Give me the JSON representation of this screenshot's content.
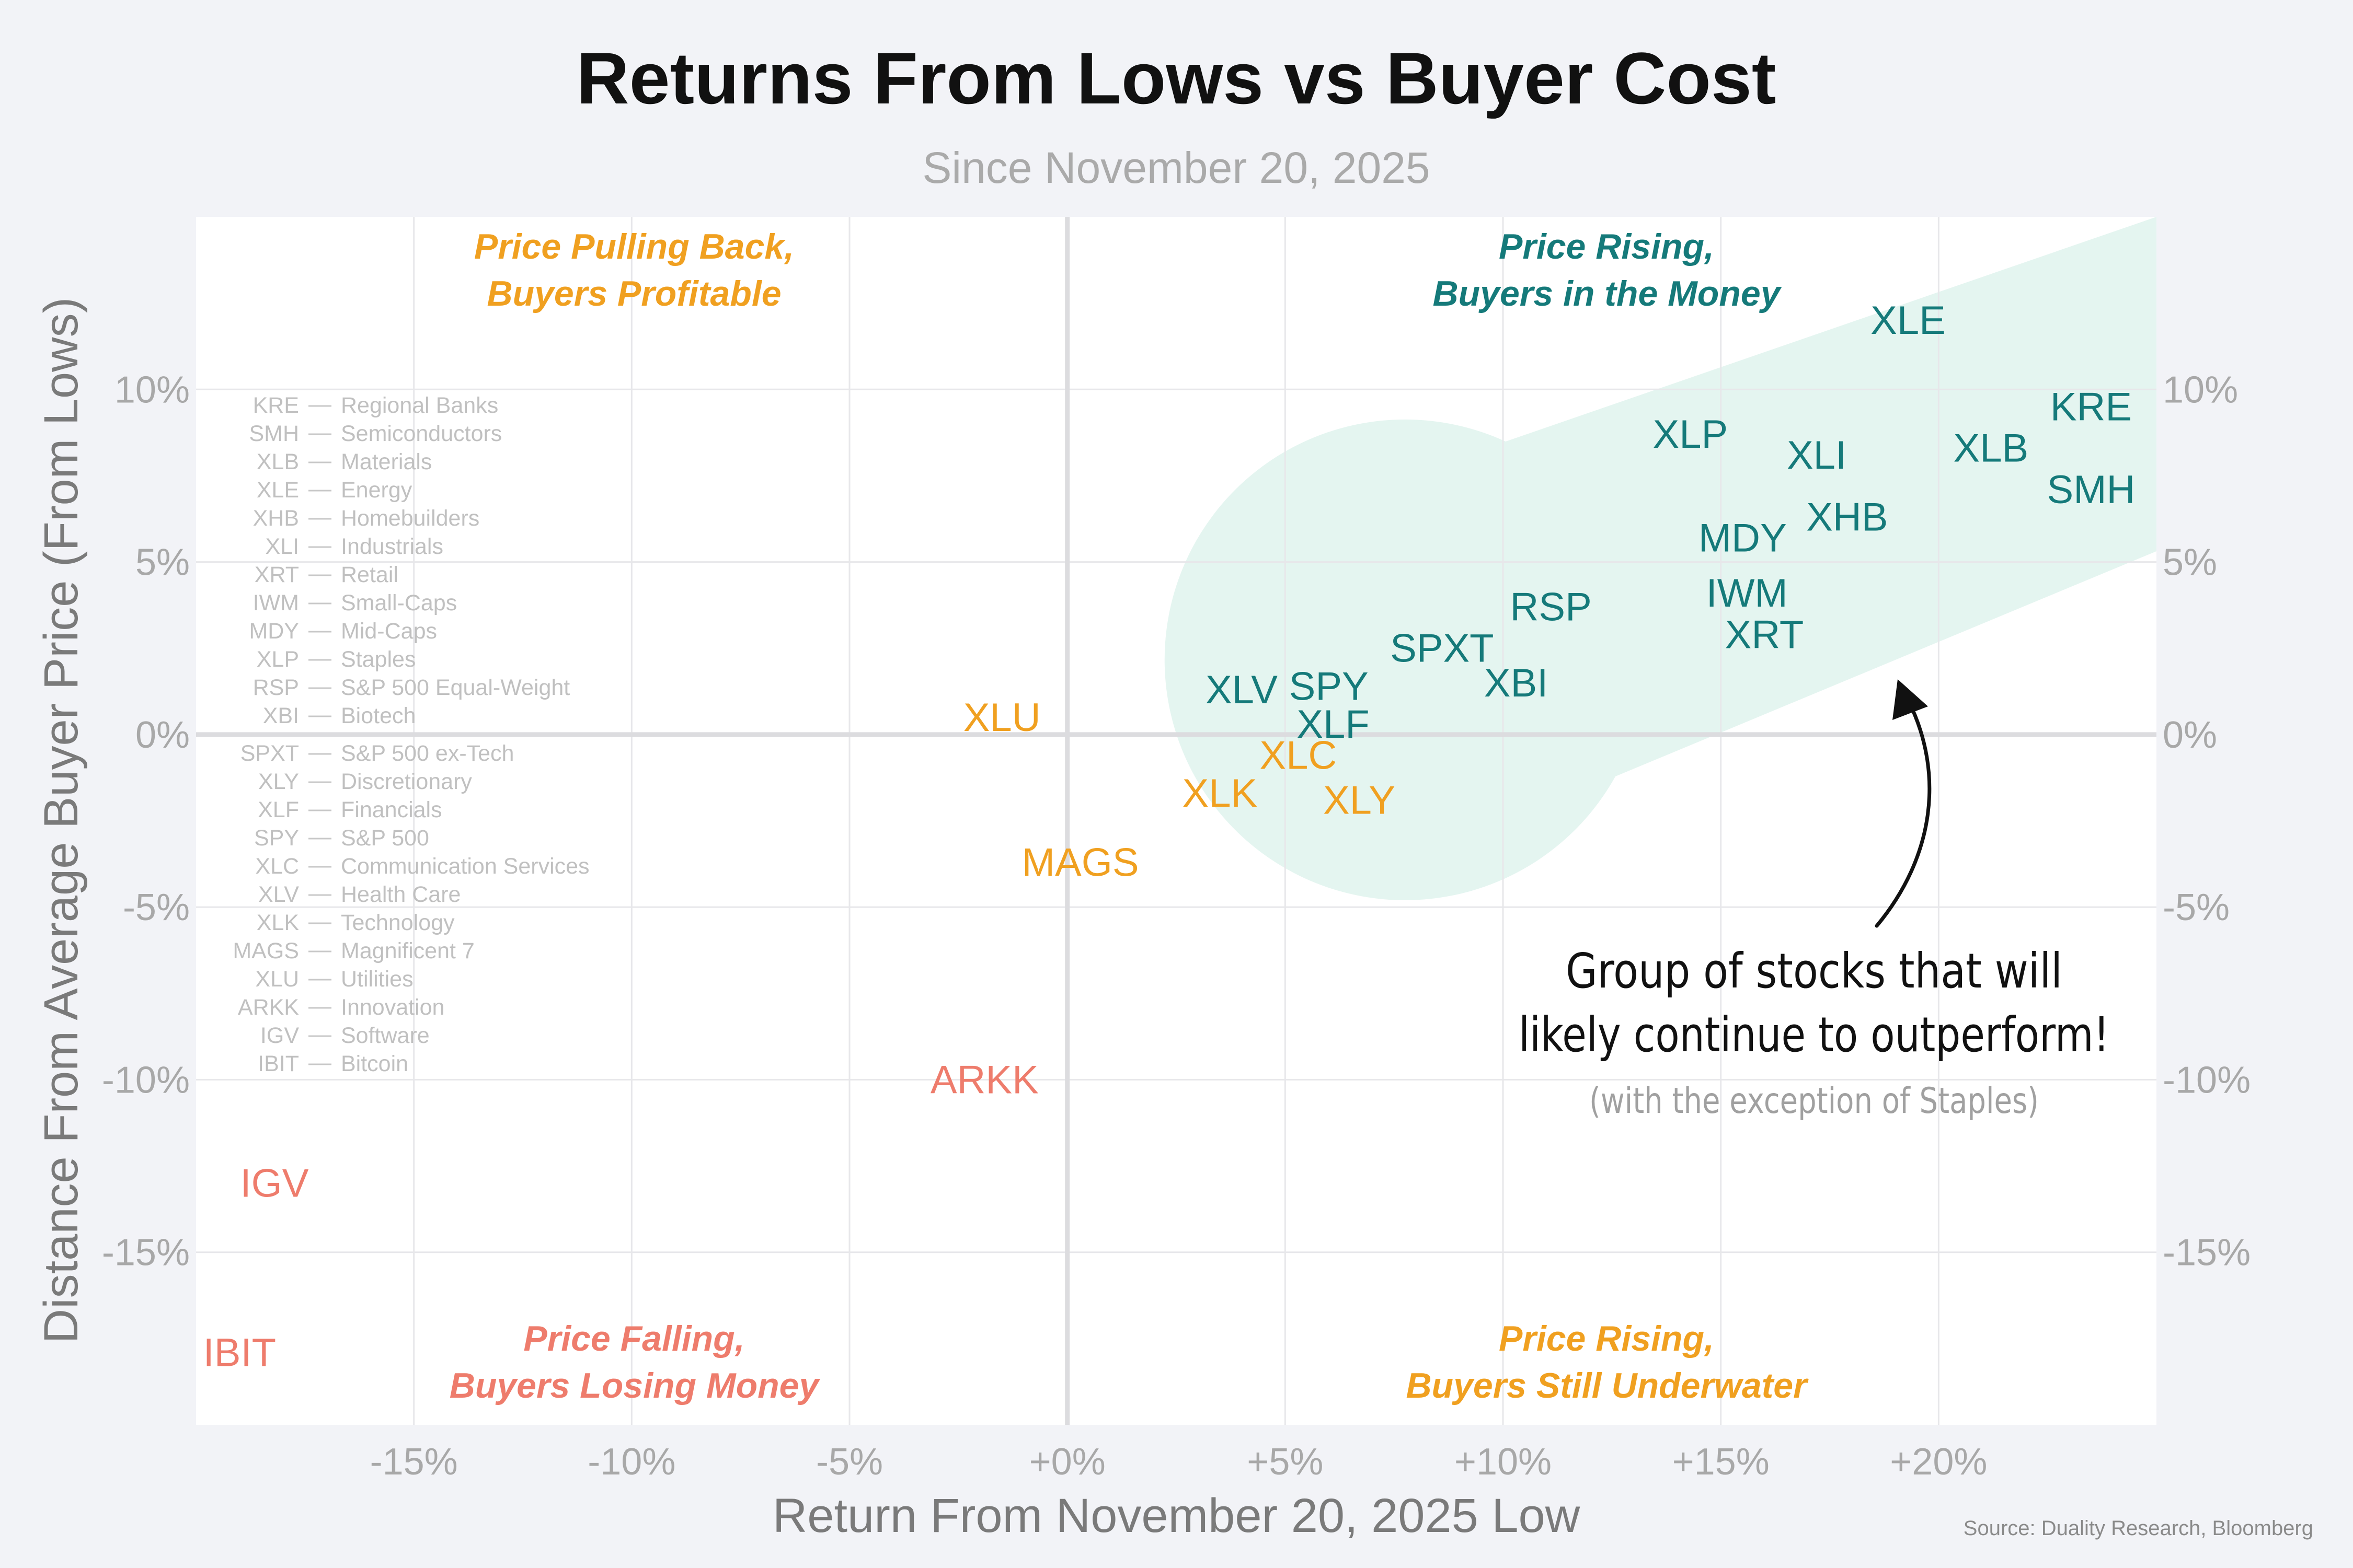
{
  "title": "Returns From Lows vs Buyer Cost",
  "subtitle": "Since November 20, 2025",
  "source": "Source: Duality Research, Bloomberg",
  "colors": {
    "teal": "#157a7a",
    "orange": "#f0a020",
    "salmon": "#ee7c6c",
    "highlight": "#e4f5f0"
  },
  "quadrants": {
    "top_left": [
      "Price Pulling Back,",
      "Buyers Profitable"
    ],
    "top_right": [
      "Price Rising,",
      "Buyers in the Money"
    ],
    "bottom_left": [
      "Price Falling,",
      "Buyers Losing Money"
    ],
    "bottom_right": [
      "Price Rising,",
      "Buyers Still Underwater"
    ]
  },
  "annotation": {
    "line1": "Group of stocks that will",
    "line2": "likely continue to outperform!",
    "line3": "(with the exception of Staples)"
  },
  "legend": [
    {
      "ticker": "KRE",
      "name": "Regional Banks"
    },
    {
      "ticker": "SMH",
      "name": "Semiconductors"
    },
    {
      "ticker": "XLB",
      "name": "Materials"
    },
    {
      "ticker": "XLE",
      "name": "Energy"
    },
    {
      "ticker": "XHB",
      "name": "Homebuilders"
    },
    {
      "ticker": "XLI",
      "name": "Industrials"
    },
    {
      "ticker": "XRT",
      "name": "Retail"
    },
    {
      "ticker": "IWM",
      "name": "Small-Caps"
    },
    {
      "ticker": "MDY",
      "name": "Mid-Caps"
    },
    {
      "ticker": "XLP",
      "name": "Staples"
    },
    {
      "ticker": "RSP",
      "name": "S&P 500 Equal-Weight"
    },
    {
      "ticker": "XBI",
      "name": "Biotech"
    },
    {
      "ticker": "SPXT",
      "name": "S&P 500 ex-Tech"
    },
    {
      "ticker": "XLY",
      "name": "Discretionary"
    },
    {
      "ticker": "XLF",
      "name": "Financials"
    },
    {
      "ticker": "SPY",
      "name": "S&P 500"
    },
    {
      "ticker": "XLC",
      "name": "Communication Services"
    },
    {
      "ticker": "XLV",
      "name": "Health Care"
    },
    {
      "ticker": "XLK",
      "name": "Technology"
    },
    {
      "ticker": "MAGS",
      "name": "Magnificent 7"
    },
    {
      "ticker": "XLU",
      "name": "Utilities"
    },
    {
      "ticker": "ARKK",
      "name": "Innovation"
    },
    {
      "ticker": "IGV",
      "name": "Software"
    },
    {
      "ticker": "IBIT",
      "name": "Bitcoin"
    }
  ],
  "chart_data": {
    "type": "scatter",
    "title": "Returns From Lows vs Buyer Cost",
    "subtitle": "Since November 20, 2025",
    "xlabel": "Return From November 20, 2025 Low",
    "ylabel": "Distance From Average Buyer Price (From Lows)",
    "xlim": [
      -20,
      25
    ],
    "ylim": [
      -20,
      15
    ],
    "x_ticks": [
      -15,
      -10,
      -5,
      0,
      5,
      10,
      15,
      20
    ],
    "x_tick_labels": [
      "-15%",
      "-10%",
      "-5%",
      "+0%",
      "+5%",
      "+10%",
      "+15%",
      "+20%"
    ],
    "y_ticks": [
      10,
      5,
      0,
      -5,
      -10,
      -15
    ],
    "y_tick_labels": [
      "10%",
      "5%",
      "0%",
      "-5%",
      "-10%",
      "-15%"
    ],
    "grid": true,
    "points": [
      {
        "label": "XLE",
        "x": 19.3,
        "y": 12.0,
        "group": "teal"
      },
      {
        "label": "KRE",
        "x": 23.5,
        "y": 9.5,
        "group": "teal"
      },
      {
        "label": "XLB",
        "x": 21.2,
        "y": 8.3,
        "group": "teal"
      },
      {
        "label": "SMH",
        "x": 23.5,
        "y": 7.1,
        "group": "teal"
      },
      {
        "label": "XLP",
        "x": 14.3,
        "y": 8.7,
        "group": "teal"
      },
      {
        "label": "XLI",
        "x": 17.2,
        "y": 8.1,
        "group": "teal"
      },
      {
        "label": "XHB",
        "x": 17.9,
        "y": 6.3,
        "group": "teal"
      },
      {
        "label": "MDY",
        "x": 15.5,
        "y": 5.7,
        "group": "teal"
      },
      {
        "label": "IWM",
        "x": 15.6,
        "y": 4.1,
        "group": "teal"
      },
      {
        "label": "XRT",
        "x": 16.0,
        "y": 2.9,
        "group": "teal"
      },
      {
        "label": "RSP",
        "x": 11.1,
        "y": 3.7,
        "group": "teal"
      },
      {
        "label": "SPXT",
        "x": 8.6,
        "y": 2.5,
        "group": "teal"
      },
      {
        "label": "XBI",
        "x": 10.3,
        "y": 1.5,
        "group": "teal"
      },
      {
        "label": "XLV",
        "x": 4.0,
        "y": 1.3,
        "group": "teal"
      },
      {
        "label": "SPY",
        "x": 6.0,
        "y": 1.4,
        "group": "teal"
      },
      {
        "label": "XLF",
        "x": 6.1,
        "y": 0.3,
        "group": "teal"
      },
      {
        "label": "XLU",
        "x": -1.5,
        "y": 0.5,
        "group": "orange"
      },
      {
        "label": "XLC",
        "x": 5.3,
        "y": -0.6,
        "group": "orange"
      },
      {
        "label": "XLK",
        "x": 3.5,
        "y": -1.7,
        "group": "orange"
      },
      {
        "label": "XLY",
        "x": 6.7,
        "y": -1.9,
        "group": "orange"
      },
      {
        "label": "MAGS",
        "x": 0.3,
        "y": -3.7,
        "group": "orange"
      },
      {
        "label": "ARKK",
        "x": -1.9,
        "y": -10.0,
        "group": "salmon"
      },
      {
        "label": "IGV",
        "x": -18.2,
        "y": -13.0,
        "group": "salmon"
      },
      {
        "label": "IBIT",
        "x": -19.0,
        "y": -17.9,
        "group": "salmon"
      }
    ]
  }
}
